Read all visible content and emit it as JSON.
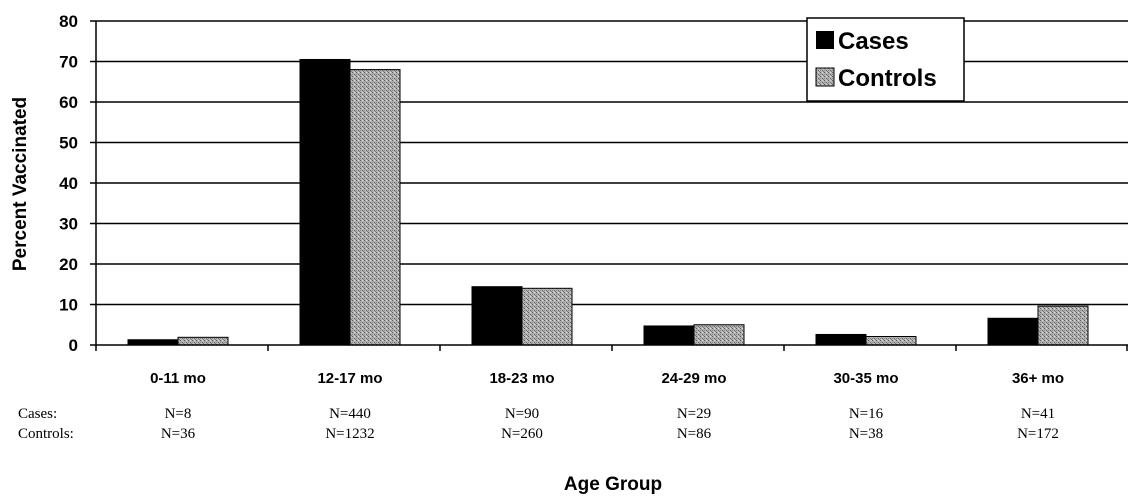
{
  "chart_data": {
    "type": "bar",
    "title": "",
    "xlabel": "Age Group",
    "ylabel": "Percent Vaccinated",
    "ylim": [
      0,
      80
    ],
    "yticks": [
      0,
      10,
      20,
      30,
      40,
      50,
      60,
      70,
      80
    ],
    "grid": true,
    "legend_position": "top-right",
    "categories": [
      "0-11 mo",
      "12-17 mo",
      "18-23 mo",
      "24-29 mo",
      "30-35 mo",
      "36+ mo"
    ],
    "series": [
      {
        "name": "Cases",
        "color": "#000000",
        "pattern": "solid",
        "values": [
          1.3,
          70.5,
          14.4,
          4.7,
          2.6,
          6.6
        ]
      },
      {
        "name": "Controls",
        "color": "#9a9a9a",
        "pattern": "dotted-gray",
        "values": [
          1.9,
          68.0,
          14.0,
          5.0,
          2.1,
          9.6
        ]
      }
    ],
    "sample_sizes": {
      "row_labels": [
        "Cases:",
        "Controls:"
      ],
      "cases": [
        "N=8",
        "N=440",
        "N=90",
        "N=29",
        "N=16",
        "N=41"
      ],
      "controls": [
        "N=36",
        "N=1232",
        "N=260",
        "N=86",
        "N=38",
        "N=172"
      ]
    }
  }
}
